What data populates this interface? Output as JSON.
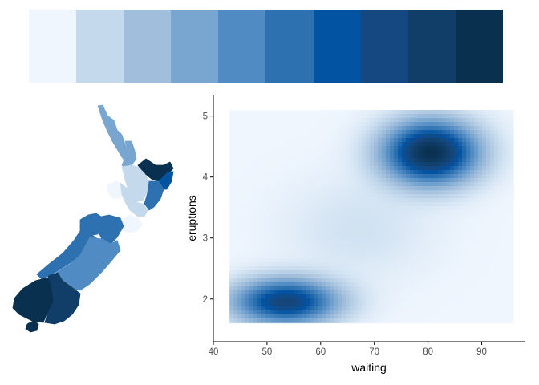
{
  "palette": {
    "colors": [
      "#eff6fe",
      "#c4d9ec",
      "#a1bedc",
      "#79a6d0",
      "#508bc3",
      "#2d71b0",
      "#0353a3",
      "#154880",
      "#103e68",
      "#0a3050"
    ]
  },
  "map": {
    "regions": [
      {
        "name": "Northland",
        "color": "#79a6d0"
      },
      {
        "name": "Auckland",
        "color": "#79a6d0"
      },
      {
        "name": "Bay of Plenty",
        "color": "#0a3050"
      },
      {
        "name": "Gisborne",
        "color": "#0353a3"
      },
      {
        "name": "Waikato",
        "color": "#c4d9ec"
      },
      {
        "name": "Hawke's Bay",
        "color": "#2d71b0"
      },
      {
        "name": "Taranaki",
        "color": "#eff6fe"
      },
      {
        "name": "Manawatu-Wanganui",
        "color": "#c4d9ec"
      },
      {
        "name": "Wellington",
        "color": "#eff6fe"
      },
      {
        "name": "Nelson-Tasman",
        "color": "#2d71b0"
      },
      {
        "name": "Marlborough",
        "color": "#2d71b0"
      },
      {
        "name": "West Coast",
        "color": "#2d71b0"
      },
      {
        "name": "Canterbury",
        "color": "#508bc3"
      },
      {
        "name": "Otago",
        "color": "#103e68"
      },
      {
        "name": "Southland",
        "color": "#0a3050"
      },
      {
        "name": "Stewart Island",
        "color": "#0a3050"
      }
    ]
  },
  "chart_data": {
    "type": "heatmap",
    "title": "",
    "xlabel": "waiting",
    "ylabel": "eruptions",
    "xlim": [
      40,
      98
    ],
    "ylim": [
      1.3,
      5.35
    ],
    "x_ticks": [
      40,
      50,
      60,
      70,
      80,
      90
    ],
    "y_ticks": [
      2,
      3,
      4,
      5
    ],
    "raster_extent": {
      "x": [
        43,
        96
      ],
      "y": [
        1.6,
        5.1
      ]
    },
    "density_peaks": [
      {
        "waiting": 80.5,
        "eruptions": 4.4,
        "relative_density": 1.0
      },
      {
        "waiting": 53.5,
        "eruptions": 1.95,
        "relative_density": 0.78
      }
    ],
    "grid": false,
    "legend": "none",
    "colors": {
      "low": "#eff6fe",
      "high": "#0a3050"
    }
  }
}
